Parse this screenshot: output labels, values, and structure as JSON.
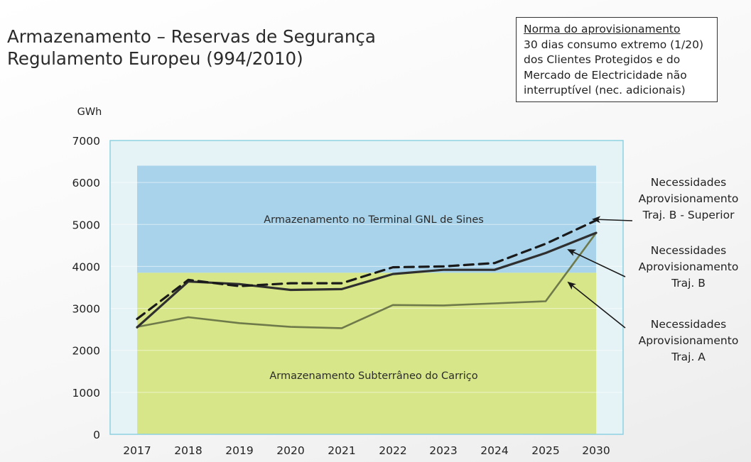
{
  "title": {
    "line1": "Armazenamento – Reservas de Segurança",
    "line2": "Regulamento Europeu (994/2010)"
  },
  "norma_box": {
    "title": "Norma do aprovisionamento",
    "lines": [
      "30 dias consumo extremo (1/20)",
      "dos Clientes Protegidos e do",
      "Mercado de Electricidade não",
      "interruptível (nec. adicionais)"
    ]
  },
  "colors": {
    "upper_band": "#a9d3ea",
    "lower_band": "#d7e688",
    "plot_background": "#e6f3f6",
    "plot_border": "#8fd1e2",
    "series_b_superior": "#1a1a1a",
    "series_b": "#2f2f2f",
    "series_a": "#6f7a4b"
  },
  "chart_data": {
    "type": "line",
    "ylabel": "GWh",
    "ylim": [
      0,
      7000
    ],
    "yticks": [
      0,
      1000,
      2000,
      3000,
      4000,
      5000,
      6000,
      7000
    ],
    "categories": [
      "2017",
      "2018",
      "2019",
      "2020",
      "2021",
      "2022",
      "2023",
      "2024",
      "2025",
      "2030"
    ],
    "bands": [
      {
        "name": "Armazenamento Subterrâneo do Carriço",
        "from": 0,
        "to": 3850
      },
      {
        "name": "Armazenamento no Terminal GNL de Sines",
        "from": 3850,
        "to": 6400
      }
    ],
    "series": [
      {
        "name": "Necessidades Aprovisionamento Traj. B - Superior",
        "style": "dashed",
        "values": [
          2750,
          3680,
          3530,
          3600,
          3600,
          3980,
          4000,
          4080,
          4540,
          5100
        ]
      },
      {
        "name": "Necessidades Aprovisionamento Traj. B",
        "style": "solid-thick",
        "values": [
          2550,
          3640,
          3580,
          3440,
          3460,
          3820,
          3920,
          3920,
          4320,
          4800
        ]
      },
      {
        "name": "Necessidades Aprovisionamento Traj. A",
        "style": "solid",
        "values": [
          2560,
          2790,
          2650,
          2560,
          2530,
          3080,
          3070,
          3120,
          3170,
          4800
        ]
      }
    ],
    "annotations": [
      {
        "series": 0,
        "lines": [
          "Necessidades",
          "Aprovisionamento",
          "Traj. B - Superior"
        ]
      },
      {
        "series": 1,
        "lines": [
          "Necessidades",
          "Aprovisionamento",
          "Traj. B"
        ]
      },
      {
        "series": 2,
        "lines": [
          "Necessidades",
          "Aprovisionamento",
          "Traj. A"
        ]
      }
    ],
    "grid": true
  }
}
